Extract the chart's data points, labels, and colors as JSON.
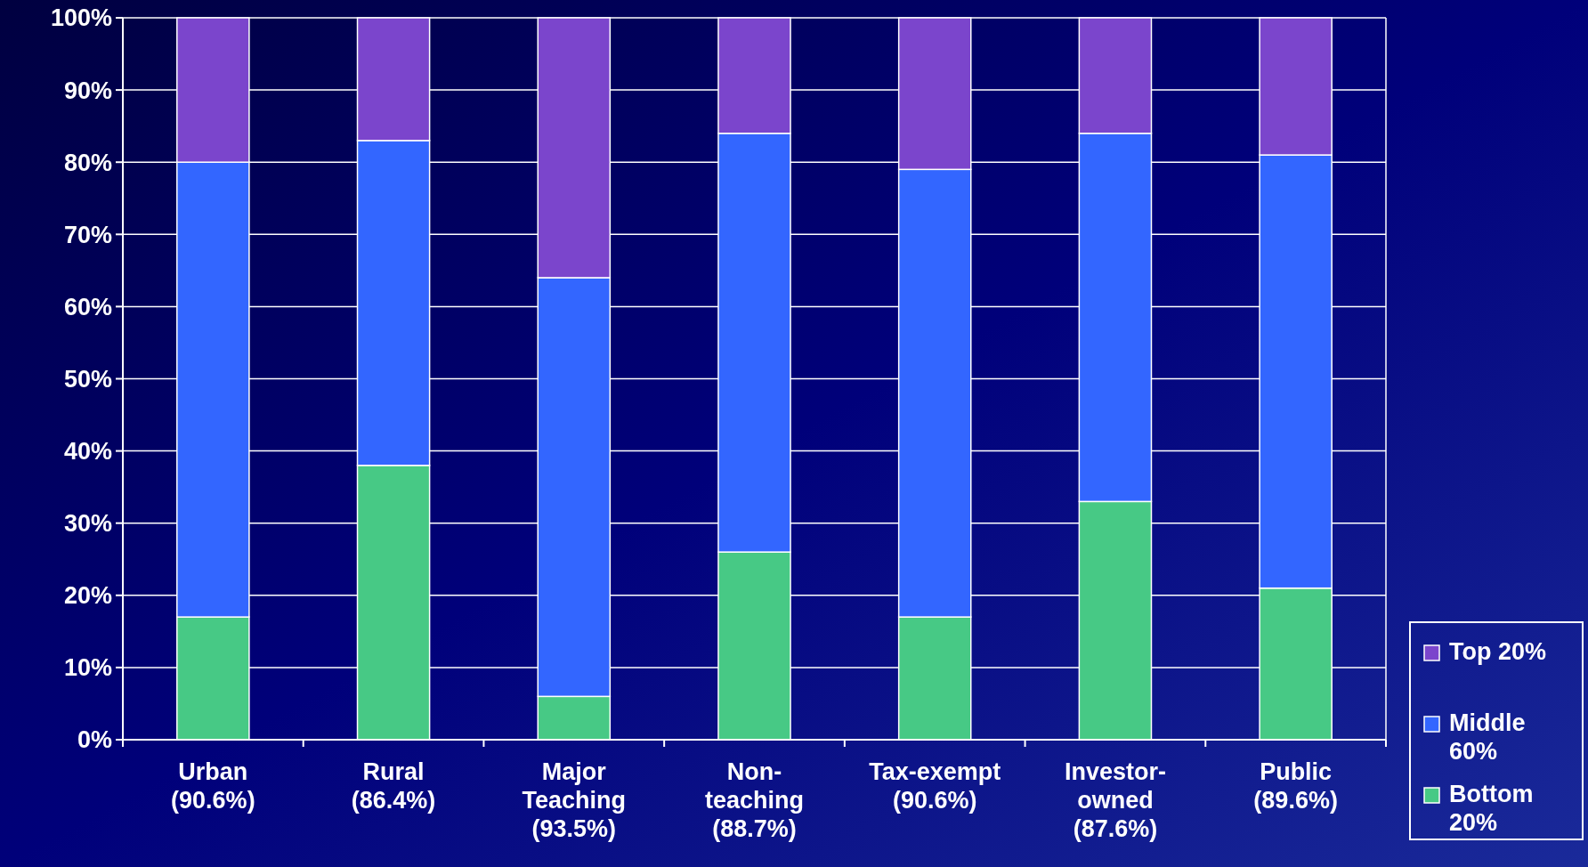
{
  "chart_data": {
    "type": "bar",
    "stacked": true,
    "categories": [
      "Urban\n(90.6%)",
      "Rural\n(86.4%)",
      "Major\nTeaching\n(93.5%)",
      "Non-\nteaching\n(88.7%)",
      "Tax-exempt\n(90.6%)",
      "Investor-\nowned\n(87.6%)",
      "Public\n(89.6%)"
    ],
    "series": [
      {
        "name": "Bottom 20%",
        "color": "#47c985",
        "values": [
          17,
          38,
          6,
          26,
          17,
          33,
          21
        ]
      },
      {
        "name": "Middle 60%",
        "color": "#3366ff",
        "values": [
          63,
          45,
          58,
          58,
          62,
          51,
          60
        ]
      },
      {
        "name": "Top 20%",
        "color": "#7b45cc",
        "values": [
          20,
          17,
          36,
          16,
          21,
          16,
          19
        ]
      }
    ],
    "ylim": [
      0,
      100
    ],
    "yticks": [
      {
        "value": 0,
        "label": "0%"
      },
      {
        "value": 10,
        "label": "10%"
      },
      {
        "value": 20,
        "label": "20%"
      },
      {
        "value": 30,
        "label": "30%"
      },
      {
        "value": 40,
        "label": "40%"
      },
      {
        "value": 50,
        "label": "50%"
      },
      {
        "value": 60,
        "label": "60%"
      },
      {
        "value": 70,
        "label": "70%"
      },
      {
        "value": 80,
        "label": "80%"
      },
      {
        "value": 90,
        "label": "90%"
      },
      {
        "value": 100,
        "label": "100%"
      }
    ],
    "grid": "y",
    "legend": "bottom right"
  }
}
